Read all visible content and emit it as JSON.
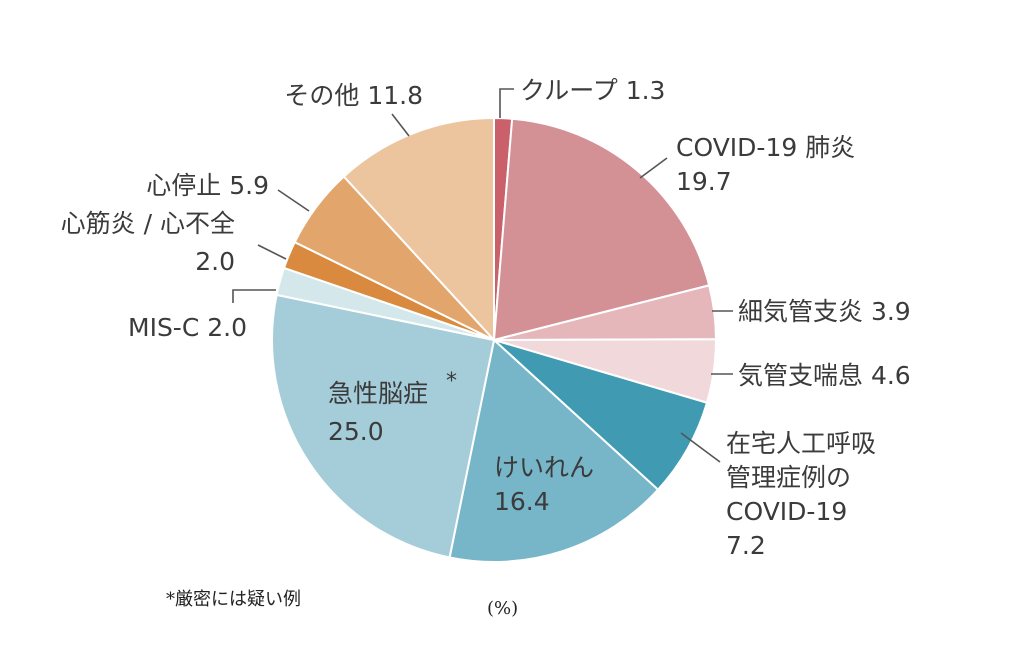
{
  "chart_data": {
    "type": "pie",
    "title": "",
    "unit_label": "(%)",
    "footnote": "*厳密には疑い例",
    "slices": [
      {
        "label": "クループ",
        "value": 1.3,
        "value_text": "1.3",
        "color": "#c9606a"
      },
      {
        "label": "COVID-19肺炎",
        "value": 19.7,
        "value_text": "19.7",
        "color": "#d39196"
      },
      {
        "label": "細気管支炎",
        "value": 3.9,
        "value_text": "3.9",
        "color": "#e6b7ba"
      },
      {
        "label": "気管支喘息",
        "value": 4.6,
        "value_text": "4.6",
        "color": "#f1d9db"
      },
      {
        "label": "在宅人工呼吸管理症例のCOVID-19",
        "value": 7.2,
        "value_text": "7.2",
        "color": "#3f9ab2"
      },
      {
        "label": "けいれん",
        "value": 16.4,
        "value_text": "16.4",
        "color": "#76b6c8"
      },
      {
        "label": "急性脳症",
        "value": 25.0,
        "value_text": "25.0",
        "color": "#a5cdd9",
        "marker": "*"
      },
      {
        "label": "MIS-C",
        "value": 2.0,
        "value_text": "2.0",
        "color": "#d4e8ec"
      },
      {
        "label": "心筋炎 / 心不全",
        "value": 2.0,
        "value_text": "2.0",
        "color": "#d98a3f"
      },
      {
        "label": "心停止",
        "value": 5.9,
        "value_text": "5.9",
        "color": "#e2a66c"
      },
      {
        "label": "その他",
        "value": 11.8,
        "value_text": "11.8",
        "color": "#ecc49e"
      }
    ]
  },
  "text_lines": {
    "croup": "クループ 1.3",
    "covid_pneu_1": "COVID-19 肺炎",
    "covid_pneu_2": "19.7",
    "bronchiolitis": "細気管支炎 3.9",
    "asthma": "気管支喘息 4.6",
    "home_vent_1": "在宅人工呼吸",
    "home_vent_2": "管理症例の",
    "home_vent_3": "COVID-19",
    "home_vent_4": "7.2",
    "seizure_1": "けいれん",
    "seizure_2": "16.4",
    "encephalopathy_1": "急性脳症",
    "encephalopathy_mark": "*",
    "encephalopathy_2": "25.0",
    "misc": "MIS-C 2.0",
    "myocarditis_1": "心筋炎 / 心不全",
    "myocarditis_2": "2.0",
    "arrest": "心停止 5.9",
    "other": "その他 11.8"
  }
}
